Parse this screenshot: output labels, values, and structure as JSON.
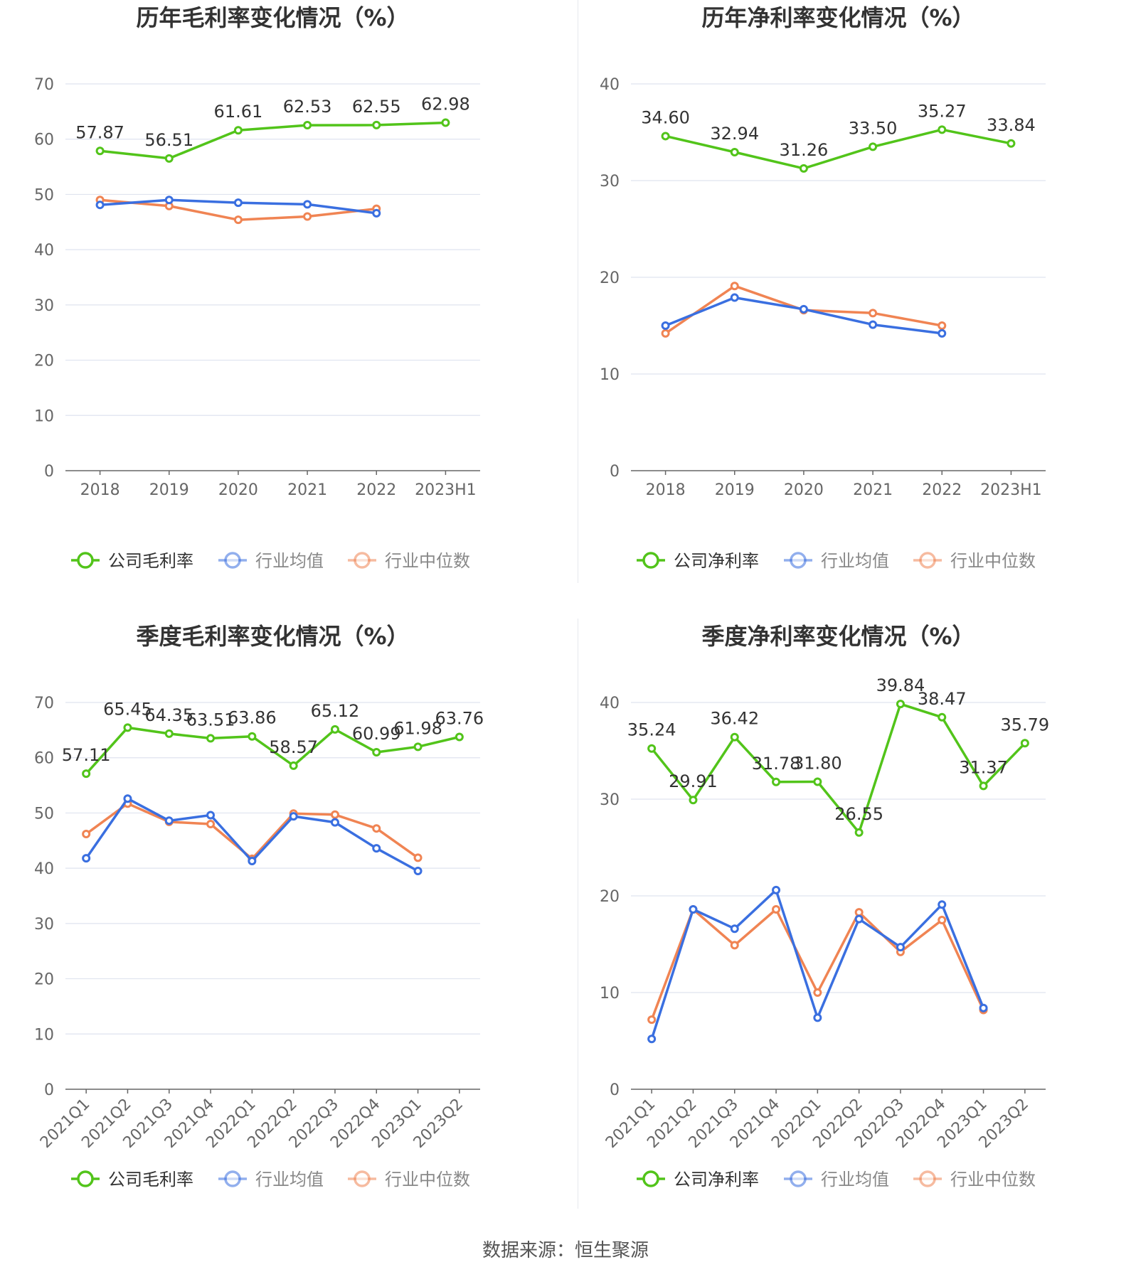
{
  "footer": {
    "source": "数据来源：恒生聚源"
  },
  "colors": {
    "company": "#52c41a",
    "industry_avg": "#3a6fe0",
    "industry_median": "#f08453",
    "grid": "#dfe3ef",
    "axis": "#666666",
    "label": "#333333"
  },
  "chart_data": [
    {
      "id": "annual-gross",
      "type": "line",
      "title": "历年毛利率变化情况（%）",
      "categories": [
        "2018",
        "2019",
        "2020",
        "2021",
        "2022",
        "2023H1"
      ],
      "ylim": [
        0,
        70
      ],
      "yticks": [
        0,
        10,
        20,
        30,
        40,
        50,
        60,
        70
      ],
      "xlabel": "",
      "ylabel": "",
      "rotate_labels": false,
      "legend": "bottom",
      "series": [
        {
          "name": "公司毛利率",
          "key": "company",
          "values": [
            57.87,
            56.51,
            61.61,
            62.53,
            62.55,
            62.98
          ],
          "labels": [
            "57.87",
            "56.51",
            "61.61",
            "62.53",
            "62.55",
            "62.98"
          ]
        },
        {
          "name": "行业均值",
          "key": "industry_avg",
          "values": [
            48.1,
            49.0,
            48.5,
            48.2,
            46.6,
            null
          ]
        },
        {
          "name": "行业中位数",
          "key": "industry_median",
          "values": [
            49.0,
            47.9,
            45.4,
            46.0,
            47.4,
            null
          ]
        }
      ]
    },
    {
      "id": "annual-net",
      "type": "line",
      "title": "历年净利率变化情况（%）",
      "categories": [
        "2018",
        "2019",
        "2020",
        "2021",
        "2022",
        "2023H1"
      ],
      "ylim": [
        0,
        40
      ],
      "yticks": [
        0,
        10,
        20,
        30,
        40
      ],
      "xlabel": "",
      "ylabel": "",
      "rotate_labels": false,
      "legend": "bottom",
      "series": [
        {
          "name": "公司净利率",
          "key": "company",
          "values": [
            34.6,
            32.94,
            31.26,
            33.5,
            35.27,
            33.84
          ],
          "labels": [
            "34.60",
            "32.94",
            "31.26",
            "33.50",
            "35.27",
            "33.84"
          ]
        },
        {
          "name": "行业均值",
          "key": "industry_avg",
          "values": [
            15.0,
            17.9,
            16.7,
            15.1,
            14.2,
            null
          ]
        },
        {
          "name": "行业中位数",
          "key": "industry_median",
          "values": [
            14.2,
            19.1,
            16.6,
            16.3,
            15.0,
            null
          ]
        }
      ]
    },
    {
      "id": "quarterly-gross",
      "type": "line",
      "title": "季度毛利率变化情况（%）",
      "categories": [
        "2021Q1",
        "2021Q2",
        "2021Q3",
        "2021Q4",
        "2022Q1",
        "2022Q2",
        "2022Q3",
        "2022Q4",
        "2023Q1",
        "2023Q2"
      ],
      "ylim": [
        0,
        70
      ],
      "yticks": [
        0,
        10,
        20,
        30,
        40,
        50,
        60,
        70
      ],
      "xlabel": "",
      "ylabel": "",
      "rotate_labels": true,
      "legend": "bottom",
      "series": [
        {
          "name": "公司毛利率",
          "key": "company",
          "values": [
            57.11,
            65.45,
            64.35,
            63.51,
            63.86,
            58.57,
            65.12,
            60.99,
            61.98,
            63.76
          ],
          "labels": [
            "57.11",
            "65.45",
            "64.35",
            "63.51",
            "63.86",
            "58.57",
            "65.12",
            "60.99",
            "61.98",
            "63.76"
          ]
        },
        {
          "name": "行业均值",
          "key": "industry_avg",
          "values": [
            41.8,
            52.6,
            48.6,
            49.6,
            41.3,
            49.4,
            48.3,
            43.6,
            39.5,
            null
          ]
        },
        {
          "name": "行业中位数",
          "key": "industry_median",
          "values": [
            46.2,
            51.7,
            48.4,
            48.0,
            41.7,
            49.9,
            49.7,
            47.2,
            41.9,
            null
          ]
        }
      ]
    },
    {
      "id": "quarterly-net",
      "type": "line",
      "title": "季度净利率变化情况（%）",
      "categories": [
        "2021Q1",
        "2021Q2",
        "2021Q3",
        "2021Q4",
        "2022Q1",
        "2022Q2",
        "2022Q3",
        "2022Q4",
        "2023Q1",
        "2023Q2"
      ],
      "ylim": [
        0,
        40
      ],
      "yticks": [
        0,
        10,
        20,
        30,
        40
      ],
      "xlabel": "",
      "ylabel": "",
      "rotate_labels": true,
      "legend": "bottom",
      "series": [
        {
          "name": "公司净利率",
          "key": "company",
          "values": [
            35.24,
            29.91,
            36.42,
            31.78,
            31.8,
            26.55,
            39.84,
            38.47,
            31.37,
            35.79
          ],
          "labels": [
            "35.24",
            "29.91",
            "36.42",
            "31.78",
            "31.80",
            "26.55",
            "39.84",
            "38.47",
            "31.37",
            "35.79"
          ]
        },
        {
          "name": "行业均值",
          "key": "industry_avg",
          "values": [
            5.2,
            18.6,
            16.6,
            20.6,
            7.4,
            17.6,
            14.7,
            19.1,
            8.4,
            null
          ]
        },
        {
          "name": "行业中位数",
          "key": "industry_median",
          "values": [
            7.2,
            18.6,
            14.9,
            18.6,
            10.0,
            18.3,
            14.2,
            17.5,
            8.2,
            null
          ]
        }
      ]
    }
  ]
}
